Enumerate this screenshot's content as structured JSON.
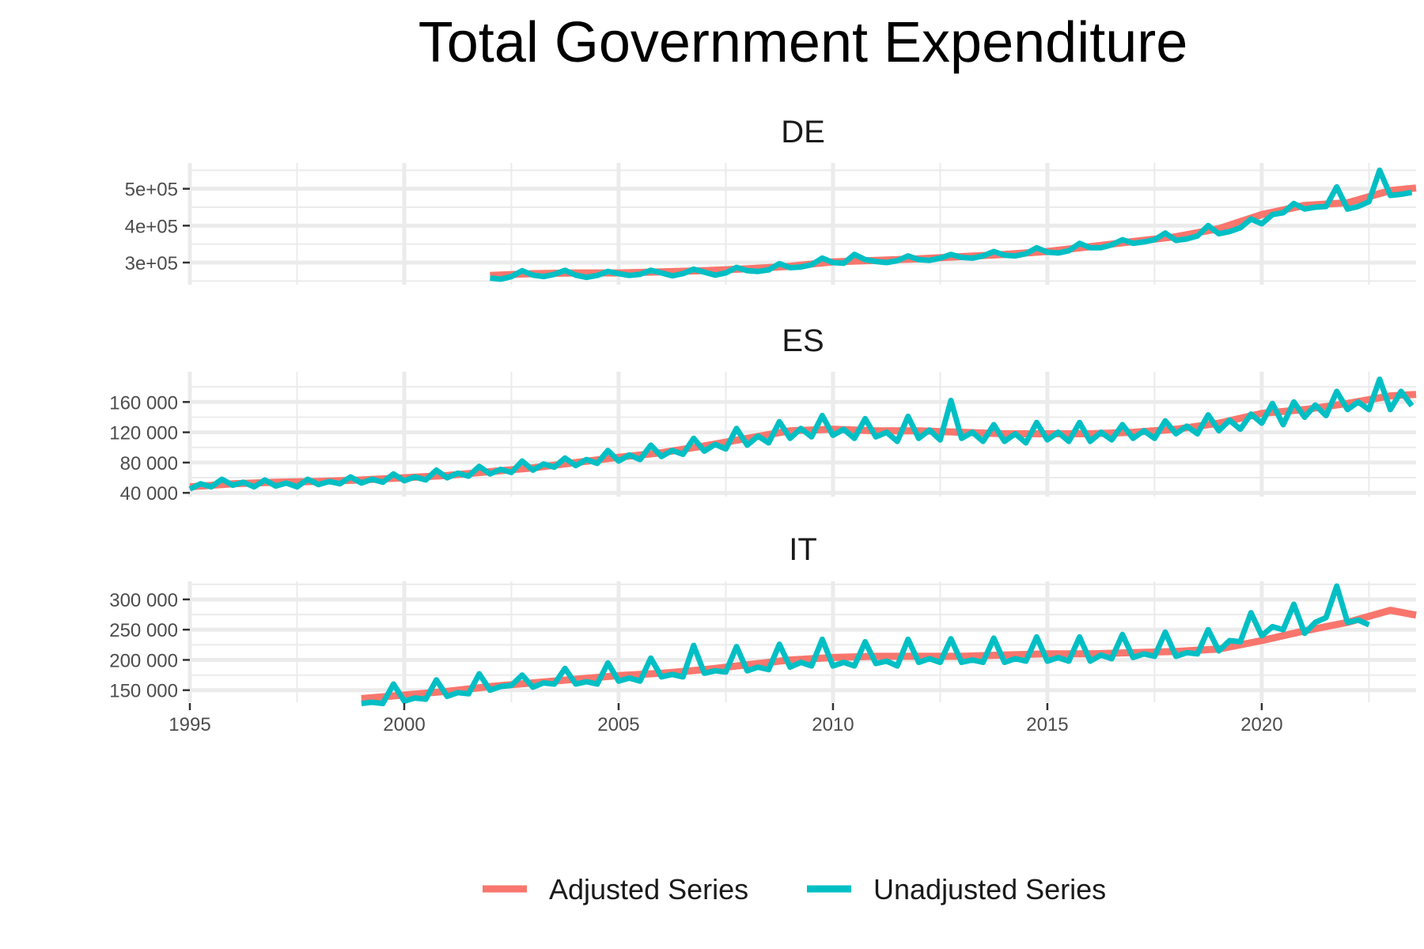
{
  "chart_data": {
    "type": "line",
    "title": "Total Government Expenditure",
    "legend": {
      "position": "bottom",
      "entries": [
        {
          "name": "Adjusted Series",
          "color": "#F8766D"
        },
        {
          "name": "Unadjusted Series",
          "color": "#00BFC4"
        }
      ]
    },
    "x_axis": {
      "range": [
        1995,
        2023.6
      ],
      "ticks": [
        1995,
        2000,
        2005,
        2010,
        2015,
        2020
      ],
      "tick_labels": [
        "1995",
        "2000",
        "2005",
        "2010",
        "2015",
        "2020"
      ]
    },
    "panels": [
      {
        "name": "DE",
        "ylim": [
          240000,
          570000
        ],
        "yticks": [
          300000,
          400000,
          500000
        ],
        "ytick_labels": [
          "3e+05",
          "4e+05",
          "5e+05"
        ],
        "start_year": 2002,
        "adjusted": {
          "points": [
            [
              2002.0,
              265000
            ],
            [
              2003.0,
              270000
            ],
            [
              2004.0,
              272000
            ],
            [
              2005.0,
              272000
            ],
            [
              2006.0,
              275000
            ],
            [
              2007.0,
              278000
            ],
            [
              2008.0,
              283000
            ],
            [
              2009.0,
              290000
            ],
            [
              2010.0,
              302000
            ],
            [
              2011.0,
              306000
            ],
            [
              2012.0,
              310000
            ],
            [
              2013.0,
              316000
            ],
            [
              2014.0,
              322000
            ],
            [
              2015.0,
              330000
            ],
            [
              2016.0,
              343000
            ],
            [
              2017.0,
              357000
            ],
            [
              2018.0,
              370000
            ],
            [
              2019.0,
              392000
            ],
            [
              2020.0,
              430000
            ],
            [
              2021.0,
              455000
            ],
            [
              2022.0,
              462000
            ],
            [
              2023.0,
              495000
            ],
            [
              2023.6,
              502000
            ]
          ]
        },
        "unadjusted": {
          "quarterly": [
            258000,
            255000,
            262000,
            278000,
            266000,
            262000,
            268000,
            279000,
            266000,
            260000,
            265000,
            276000,
            270000,
            265000,
            268000,
            279000,
            272000,
            264000,
            270000,
            282000,
            274000,
            266000,
            272000,
            287000,
            278000,
            276000,
            280000,
            297000,
            286000,
            288000,
            294000,
            312000,
            300000,
            298000,
            322000,
            308000,
            303000,
            300000,
            305000,
            318000,
            308000,
            306000,
            312000,
            322000,
            314000,
            312000,
            318000,
            330000,
            320000,
            318000,
            324000,
            340000,
            328000,
            326000,
            332000,
            352000,
            340000,
            340000,
            348000,
            362000,
            352000,
            356000,
            362000,
            380000,
            360000,
            364000,
            372000,
            400000,
            378000,
            384000,
            394000,
            418000,
            405000,
            430000,
            435000,
            460000,
            445000,
            450000,
            452000,
            505000,
            445000,
            452000,
            465000,
            550000,
            482000,
            485000,
            490000
          ]
        }
      },
      {
        "name": "ES",
        "ylim": [
          35000,
          200000
        ],
        "yticks": [
          40000,
          80000,
          120000,
          160000
        ],
        "ytick_labels": [
          "40 000",
          "80 000",
          "120 000",
          "160 000"
        ],
        "start_year": 1995,
        "adjusted": {
          "points": [
            [
              1995.0,
              48000
            ],
            [
              1996.0,
              52000
            ],
            [
              1997.0,
              54000
            ],
            [
              1998.0,
              55000
            ],
            [
              1999.0,
              57000
            ],
            [
              2000.0,
              60000
            ],
            [
              2001.0,
              63000
            ],
            [
              2002.0,
              68000
            ],
            [
              2003.0,
              73000
            ],
            [
              2004.0,
              80000
            ],
            [
              2005.0,
              87000
            ],
            [
              2006.0,
              93000
            ],
            [
              2007.0,
              102000
            ],
            [
              2008.0,
              112000
            ],
            [
              2009.0,
              122000
            ],
            [
              2010.0,
              124000
            ],
            [
              2011.0,
              122000
            ],
            [
              2012.0,
              122000
            ],
            [
              2013.0,
              120000
            ],
            [
              2014.0,
              118000
            ],
            [
              2015.0,
              118000
            ],
            [
              2016.0,
              118000
            ],
            [
              2017.0,
              120000
            ],
            [
              2018.0,
              124000
            ],
            [
              2019.0,
              132000
            ],
            [
              2020.0,
              145000
            ],
            [
              2021.0,
              150000
            ],
            [
              2022.0,
              158000
            ],
            [
              2023.0,
              168000
            ],
            [
              2023.6,
              170000
            ]
          ]
        },
        "unadjusted": {
          "quarterly": [
            45000,
            52000,
            48000,
            58000,
            50000,
            54000,
            48000,
            57000,
            49000,
            53000,
            48000,
            58000,
            51000,
            55000,
            52000,
            61000,
            53000,
            58000,
            54000,
            65000,
            56000,
            61000,
            57000,
            70000,
            60000,
            66000,
            62000,
            75000,
            65000,
            71000,
            67000,
            82000,
            70000,
            78000,
            74000,
            86000,
            76000,
            84000,
            79000,
            96000,
            82000,
            90000,
            84000,
            103000,
            88000,
            96000,
            91000,
            112000,
            95000,
            104000,
            98000,
            125000,
            103000,
            115000,
            106000,
            134000,
            112000,
            125000,
            114000,
            142000,
            116000,
            124000,
            112000,
            138000,
            114000,
            120000,
            108000,
            141000,
            112000,
            123000,
            110000,
            162000,
            112000,
            120000,
            108000,
            130000,
            108000,
            118000,
            106000,
            133000,
            110000,
            120000,
            108000,
            133000,
            108000,
            120000,
            110000,
            130000,
            112000,
            122000,
            112000,
            135000,
            118000,
            128000,
            118000,
            143000,
            122000,
            136000,
            124000,
            144000,
            132000,
            158000,
            130000,
            160000,
            140000,
            156000,
            142000,
            174000,
            150000,
            160000,
            150000,
            190000,
            150000,
            174000,
            155000
          ]
        }
      },
      {
        "name": "IT",
        "ylim": [
          130000,
          330000
        ],
        "yticks": [
          150000,
          200000,
          250000,
          300000
        ],
        "ytick_labels": [
          "150 000",
          "200 000",
          "250 000",
          "300 000"
        ],
        "start_year": 1999,
        "adjusted": {
          "points": [
            [
              1999.0,
              136000
            ],
            [
              2000.0,
              142000
            ],
            [
              2001.0,
              148000
            ],
            [
              2002.0,
              156000
            ],
            [
              2003.0,
              162000
            ],
            [
              2004.0,
              168000
            ],
            [
              2005.0,
              174000
            ],
            [
              2006.0,
              178000
            ],
            [
              2007.0,
              184000
            ],
            [
              2008.0,
              192000
            ],
            [
              2009.0,
              200000
            ],
            [
              2010.0,
              204000
            ],
            [
              2011.0,
              206000
            ],
            [
              2012.0,
              206000
            ],
            [
              2013.0,
              206000
            ],
            [
              2014.0,
              208000
            ],
            [
              2015.0,
              210000
            ],
            [
              2016.0,
              210000
            ],
            [
              2017.0,
              212000
            ],
            [
              2018.0,
              214000
            ],
            [
              2019.0,
              218000
            ],
            [
              2020.0,
              232000
            ],
            [
              2021.0,
              248000
            ],
            [
              2022.0,
              262000
            ],
            [
              2023.0,
              282000
            ],
            [
              2023.6,
              274000
            ]
          ]
        },
        "unadjusted": {
          "quarterly": [
            128000,
            130000,
            128000,
            160000,
            132000,
            137000,
            135000,
            167000,
            140000,
            146000,
            144000,
            177000,
            150000,
            156000,
            158000,
            175000,
            155000,
            162000,
            160000,
            186000,
            160000,
            164000,
            160000,
            195000,
            165000,
            170000,
            165000,
            203000,
            172000,
            176000,
            172000,
            224000,
            178000,
            182000,
            180000,
            222000,
            182000,
            188000,
            184000,
            226000,
            188000,
            196000,
            190000,
            234000,
            190000,
            196000,
            190000,
            230000,
            194000,
            198000,
            190000,
            234000,
            196000,
            202000,
            196000,
            235000,
            196000,
            200000,
            196000,
            236000,
            196000,
            202000,
            198000,
            238000,
            198000,
            204000,
            198000,
            238000,
            198000,
            208000,
            202000,
            242000,
            204000,
            210000,
            206000,
            246000,
            206000,
            212000,
            210000,
            250000,
            215000,
            232000,
            230000,
            278000,
            240000,
            255000,
            250000,
            292000,
            244000,
            262000,
            270000,
            322000,
            262000,
            266000,
            258000
          ]
        }
      }
    ]
  }
}
